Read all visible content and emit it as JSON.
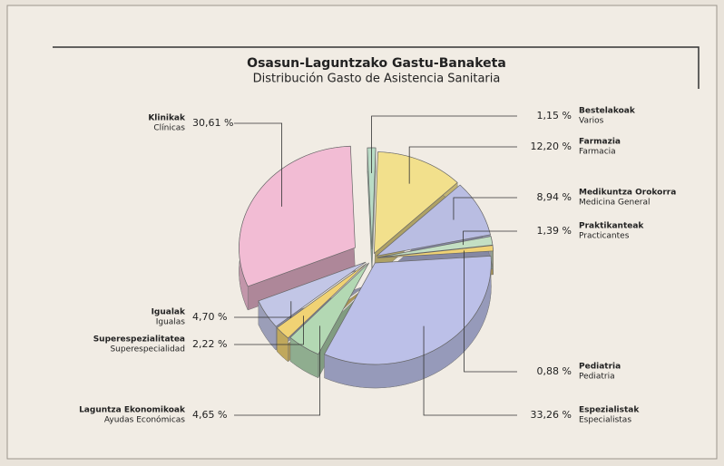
{
  "chart_data": {
    "type": "pie",
    "title": "Osasun-Laguntzako Gastu-Banaketa",
    "subtitle": "Distribución Gasto de Asistencia Sanitaria",
    "categories": [
      "Bestelakoak",
      "Farmazia",
      "Medikuntza Orokorra",
      "Praktikanteak",
      "Pediatria",
      "Espezialistak",
      "Laguntza Ekonomikoak",
      "Superespezialitatea",
      "Igualak",
      "Klinikak"
    ],
    "subcategories": [
      "Varios",
      "Farmacia",
      "Medicina General",
      "Practicantes",
      "Pediatria",
      "Especialistas",
      "Ayudas Económicas",
      "Superespecialidad",
      "Igualas",
      "Clínicas"
    ],
    "values": [
      1.15,
      12.2,
      8.94,
      1.39,
      0.88,
      33.26,
      4.65,
      2.22,
      4.7,
      30.61
    ],
    "value_labels": [
      "1,15 %",
      "12,20 %",
      "8,94 %",
      "1,39 %",
      "0,88 %",
      "33,26 %",
      "4,65 %",
      "2,22 %",
      "4,70 %",
      "30,61 %"
    ],
    "colors": [
      "#b9dcc6",
      "#f2e08c",
      "#b9bde2",
      "#c3dfc3",
      "#f0d274",
      "#bcc0e8",
      "#b3d8b3",
      "#f0d274",
      "#c2c6e6",
      "#f2bcd4"
    ]
  }
}
